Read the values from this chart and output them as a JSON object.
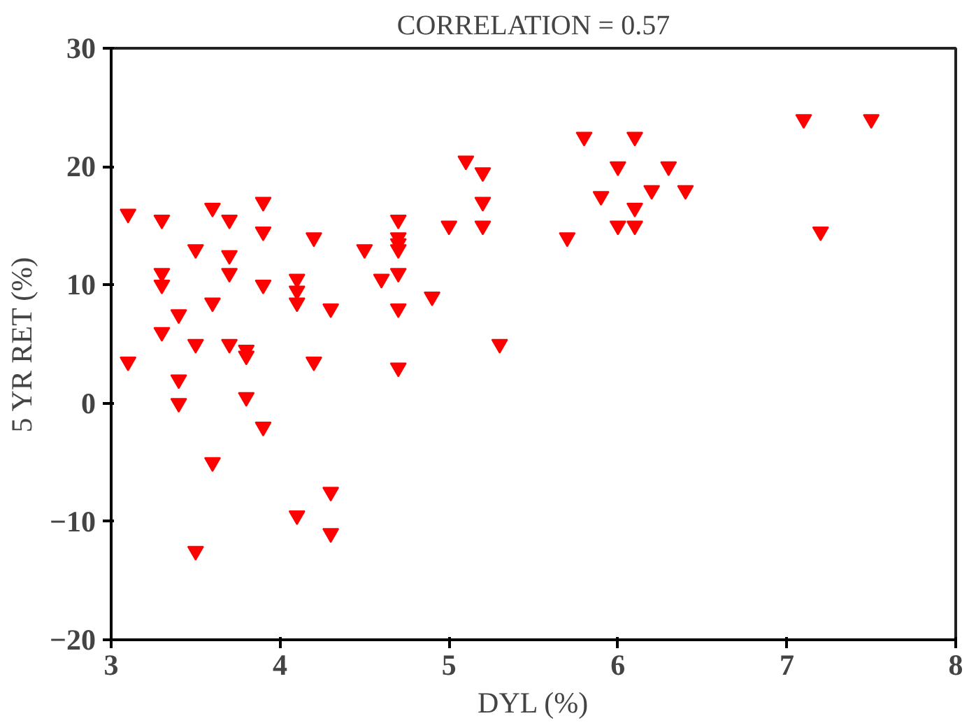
{
  "chart_data": {
    "type": "scatter",
    "title": "CORRELATION = 0.57",
    "xlabel": "DYL (%)",
    "ylabel": "5 YR RET (%)",
    "x": [
      3.1,
      3.1,
      3.3,
      3.3,
      3.3,
      3.3,
      3.4,
      3.4,
      3.4,
      3.5,
      3.5,
      3.5,
      3.6,
      3.6,
      3.6,
      3.7,
      3.7,
      3.7,
      3.7,
      3.8,
      3.8,
      3.8,
      3.9,
      3.9,
      3.9,
      3.9,
      4.1,
      4.1,
      4.1,
      4.1,
      4.2,
      4.2,
      4.3,
      4.3,
      4.3,
      4.5,
      4.6,
      4.7,
      4.7,
      4.7,
      4.7,
      4.7,
      4.7,
      4.7,
      4.9,
      5.0,
      5.1,
      5.2,
      5.2,
      5.2,
      5.3,
      5.7,
      5.8,
      5.9,
      6.0,
      6.0,
      6.1,
      6.1,
      6.1,
      6.2,
      6.3,
      6.4,
      7.1,
      7.2,
      7.5
    ],
    "series": [
      {
        "color": "#ff0000",
        "values": [
          16,
          3.5,
          15.5,
          11,
          10,
          6,
          7.5,
          2,
          0,
          13,
          5,
          -12.5,
          16.5,
          8.5,
          -5,
          15.5,
          12.5,
          11,
          5,
          4.5,
          4,
          0.5,
          17,
          14.5,
          10,
          -2,
          10.5,
          9.5,
          8.5,
          -9.5,
          14,
          3.5,
          8,
          -7.5,
          -11,
          13,
          10.5,
          15.5,
          14,
          13.5,
          13,
          11,
          8,
          3,
          9,
          15,
          20.5,
          19.5,
          17,
          15,
          5,
          14,
          22.5,
          17.5,
          20,
          15,
          22.5,
          16.5,
          15,
          18,
          20,
          18,
          24,
          14.5,
          24
        ]
      }
    ],
    "xlim": [
      3,
      8
    ],
    "ylim": [
      -20,
      30
    ],
    "xticks": [
      3,
      4,
      5,
      6,
      7,
      8
    ],
    "yticks": [
      -20,
      -10,
      0,
      10,
      20,
      30
    ],
    "marker": "triangle",
    "grid": false
  }
}
